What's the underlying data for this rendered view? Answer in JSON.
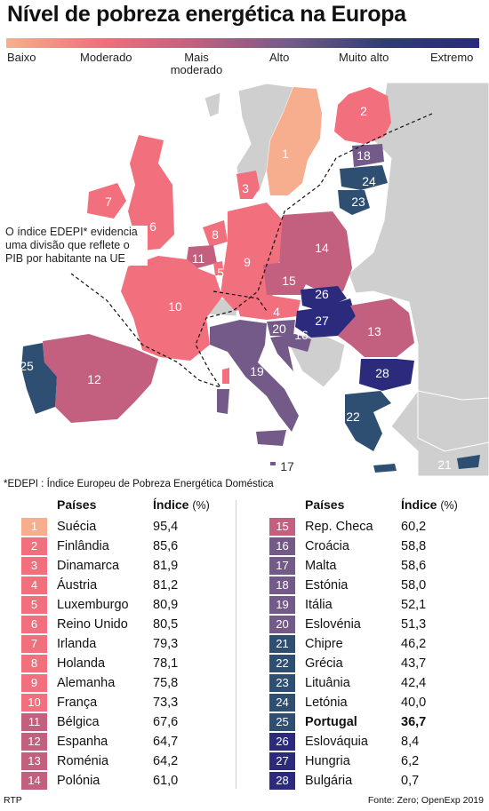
{
  "title": "Nível de pobreza energética na Europa",
  "legend": {
    "colors": [
      "#f6b08e",
      "#f26f7c",
      "#c35f7f",
      "#745a89",
      "#2f3d70",
      "#2b2a7d"
    ],
    "labels": [
      "Baixo",
      "Moderado",
      "Mais\nmoderado",
      "Alto",
      "Muito alto",
      "Extremo"
    ]
  },
  "map_note": "O índice EDEPI* evidencia uma divisão que reflete o PIB por habitante na UE",
  "map_labels": [
    "1",
    "2",
    "3",
    "4",
    "5",
    "6",
    "7",
    "8",
    "9",
    "10",
    "11",
    "12",
    "13",
    "14",
    "15",
    "16",
    "17",
    "18",
    "19",
    "20",
    "21",
    "22",
    "23",
    "24",
    "25",
    "26",
    "27",
    "28"
  ],
  "footnote": "*EDEPI : Índice Europeu de Pobreza Energética Doméstica",
  "table": {
    "header_country": "Países",
    "header_index": "Índice",
    "header_unit": "(%)",
    "rows": [
      {
        "rank": "1",
        "country": "Suécia",
        "index": "95,4",
        "color": "#f6ae8f"
      },
      {
        "rank": "2",
        "country": "Finlândia",
        "index": "85,6",
        "color": "#f26f7d"
      },
      {
        "rank": "3",
        "country": "Dinamarca",
        "index": "81,9",
        "color": "#f26f7d"
      },
      {
        "rank": "4",
        "country": "Áustria",
        "index": "81,2",
        "color": "#f26f7d"
      },
      {
        "rank": "5",
        "country": "Luxemburgo",
        "index": "80,9",
        "color": "#f26f7d"
      },
      {
        "rank": "6",
        "country": "Reino Unido",
        "index": "80,5",
        "color": "#f26f7d"
      },
      {
        "rank": "7",
        "country": "Irlanda",
        "index": "79,3",
        "color": "#f26f7d"
      },
      {
        "rank": "8",
        "country": "Holanda",
        "index": "78,1",
        "color": "#f26f7d"
      },
      {
        "rank": "9",
        "country": "Alemanha",
        "index": "75,8",
        "color": "#f26f7d"
      },
      {
        "rank": "10",
        "country": "França",
        "index": "73,3",
        "color": "#f26f7d"
      },
      {
        "rank": "11",
        "country": "Bélgica",
        "index": "67,6",
        "color": "#c35f7f"
      },
      {
        "rank": "12",
        "country": "Espanha",
        "index": "64,7",
        "color": "#c35f7f"
      },
      {
        "rank": "13",
        "country": "Roménia",
        "index": "64,2",
        "color": "#c35f7f"
      },
      {
        "rank": "14",
        "country": "Polónia",
        "index": "61,0",
        "color": "#c35f7f"
      },
      {
        "rank": "15",
        "country": "Rep. Checa",
        "index": "60,2",
        "color": "#c35f7f"
      },
      {
        "rank": "16",
        "country": "Croácia",
        "index": "58,8",
        "color": "#745a89"
      },
      {
        "rank": "17",
        "country": "Malta",
        "index": "58,6",
        "color": "#745a89"
      },
      {
        "rank": "18",
        "country": "Estónia",
        "index": "58,0",
        "color": "#745a89"
      },
      {
        "rank": "19",
        "country": "Itália",
        "index": "52,1",
        "color": "#745a89"
      },
      {
        "rank": "20",
        "country": "Eslovénia",
        "index": "51,3",
        "color": "#745a89"
      },
      {
        "rank": "21",
        "country": "Chipre",
        "index": "46,2",
        "color": "#2e4f72"
      },
      {
        "rank": "22",
        "country": "Grécia",
        "index": "43,7",
        "color": "#2e4f72"
      },
      {
        "rank": "23",
        "country": "Lituânia",
        "index": "42,4",
        "color": "#2e4f72"
      },
      {
        "rank": "24",
        "country": "Letónia",
        "index": "40,0",
        "color": "#2e4f72"
      },
      {
        "rank": "25",
        "country": "Portugal",
        "index": "36,7",
        "color": "#2e4f72",
        "bold": true
      },
      {
        "rank": "26",
        "country": "Eslováquia",
        "index": "8,4",
        "color": "#2b2a7d"
      },
      {
        "rank": "27",
        "country": "Hungria",
        "index": "6,2",
        "color": "#2b2a7d"
      },
      {
        "rank": "28",
        "country": "Bulgária",
        "index": "0,7",
        "color": "#2b2a7d"
      }
    ]
  },
  "credit": "RTP",
  "source": "Fonte: Zero; OpenExp 2019"
}
